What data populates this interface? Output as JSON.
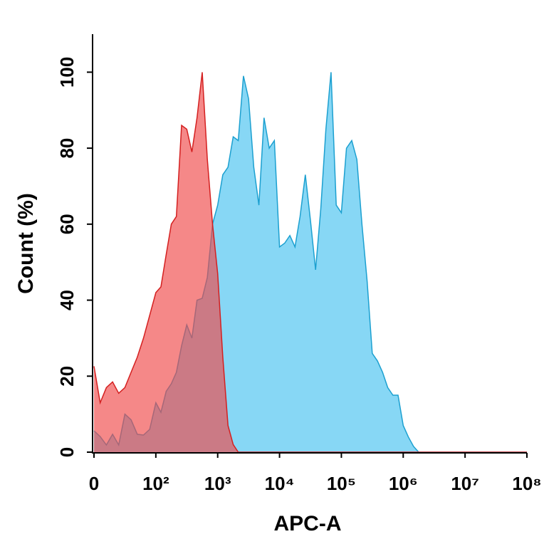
{
  "chart_data": {
    "type": "area",
    "x_label": "APC-A",
    "y_label": "Count (%)",
    "x": [
      0,
      10,
      20,
      30,
      40,
      50,
      60,
      70,
      80,
      90,
      100,
      121,
      147,
      178,
      215,
      261,
      316,
      383,
      464,
      562,
      681,
      825,
      1000,
      1210,
      1470,
      1780,
      2150,
      2610,
      3160,
      3830,
      4640,
      5620,
      6810,
      8250,
      10000,
      12100,
      14700,
      17800,
      21500,
      26100,
      31600,
      38300,
      46400,
      56200,
      68100,
      82500,
      100000,
      121000,
      147000,
      178000,
      215000,
      261000,
      316000,
      383000,
      464000,
      562000,
      681000,
      825000,
      1000000,
      1210000,
      1470000,
      1780000,
      100000000
    ],
    "series": [
      {
        "color": "#1ca0d0",
        "fill": "#87d7f5",
        "values": [
          5.6,
          4.1,
          1.9,
          4.7,
          1.9,
          10,
          8.5,
          4.7,
          4.5,
          6,
          13,
          10.5,
          16,
          18,
          21,
          28,
          33.5,
          30,
          40,
          40.5,
          46,
          60,
          65,
          73,
          75,
          83,
          82,
          99,
          93,
          75,
          65,
          88,
          80,
          82,
          54,
          55,
          57,
          54,
          62,
          73,
          61,
          48,
          64,
          85,
          100,
          65,
          63,
          80,
          82,
          77,
          60,
          45,
          26,
          24,
          21,
          17,
          15,
          15,
          7,
          4,
          1.5,
          0,
          0
        ]
      },
      {
        "color": "#d42020",
        "fill": "#f04848",
        "values": [
          22.6,
          13,
          17,
          18.5,
          15.5,
          17,
          21,
          25,
          30,
          36,
          42,
          43.5,
          52,
          60,
          62,
          86,
          85,
          79,
          88,
          100,
          77,
          60,
          47,
          25,
          7,
          2,
          0,
          0,
          0,
          0,
          0,
          0,
          0,
          0,
          0,
          0,
          0,
          0,
          0,
          0,
          0,
          0,
          0,
          0,
          0,
          0,
          0,
          0,
          0,
          0,
          0,
          0,
          0,
          0,
          0,
          0,
          0,
          0,
          0,
          0,
          0,
          0,
          0
        ]
      }
    ],
    "xscale": "symlog",
    "linthresh": 100,
    "xlim": [
      0,
      100000000
    ],
    "xticks": [
      0,
      {
        "value": 100,
        "label": "10²"
      },
      {
        "value": 1000,
        "label": "10³"
      },
      {
        "value": 10000,
        "label": "10⁴"
      },
      {
        "value": 100000,
        "label": "10⁵"
      },
      {
        "value": 1000000,
        "label": "10⁶"
      },
      {
        "value": 10000000,
        "label": "10⁷"
      },
      {
        "value": 100000000,
        "label": "10⁸"
      }
    ],
    "ylim": [
      0,
      110
    ],
    "yticks": [
      0,
      20,
      40,
      60,
      80,
      100
    ],
    "grid": false
  }
}
